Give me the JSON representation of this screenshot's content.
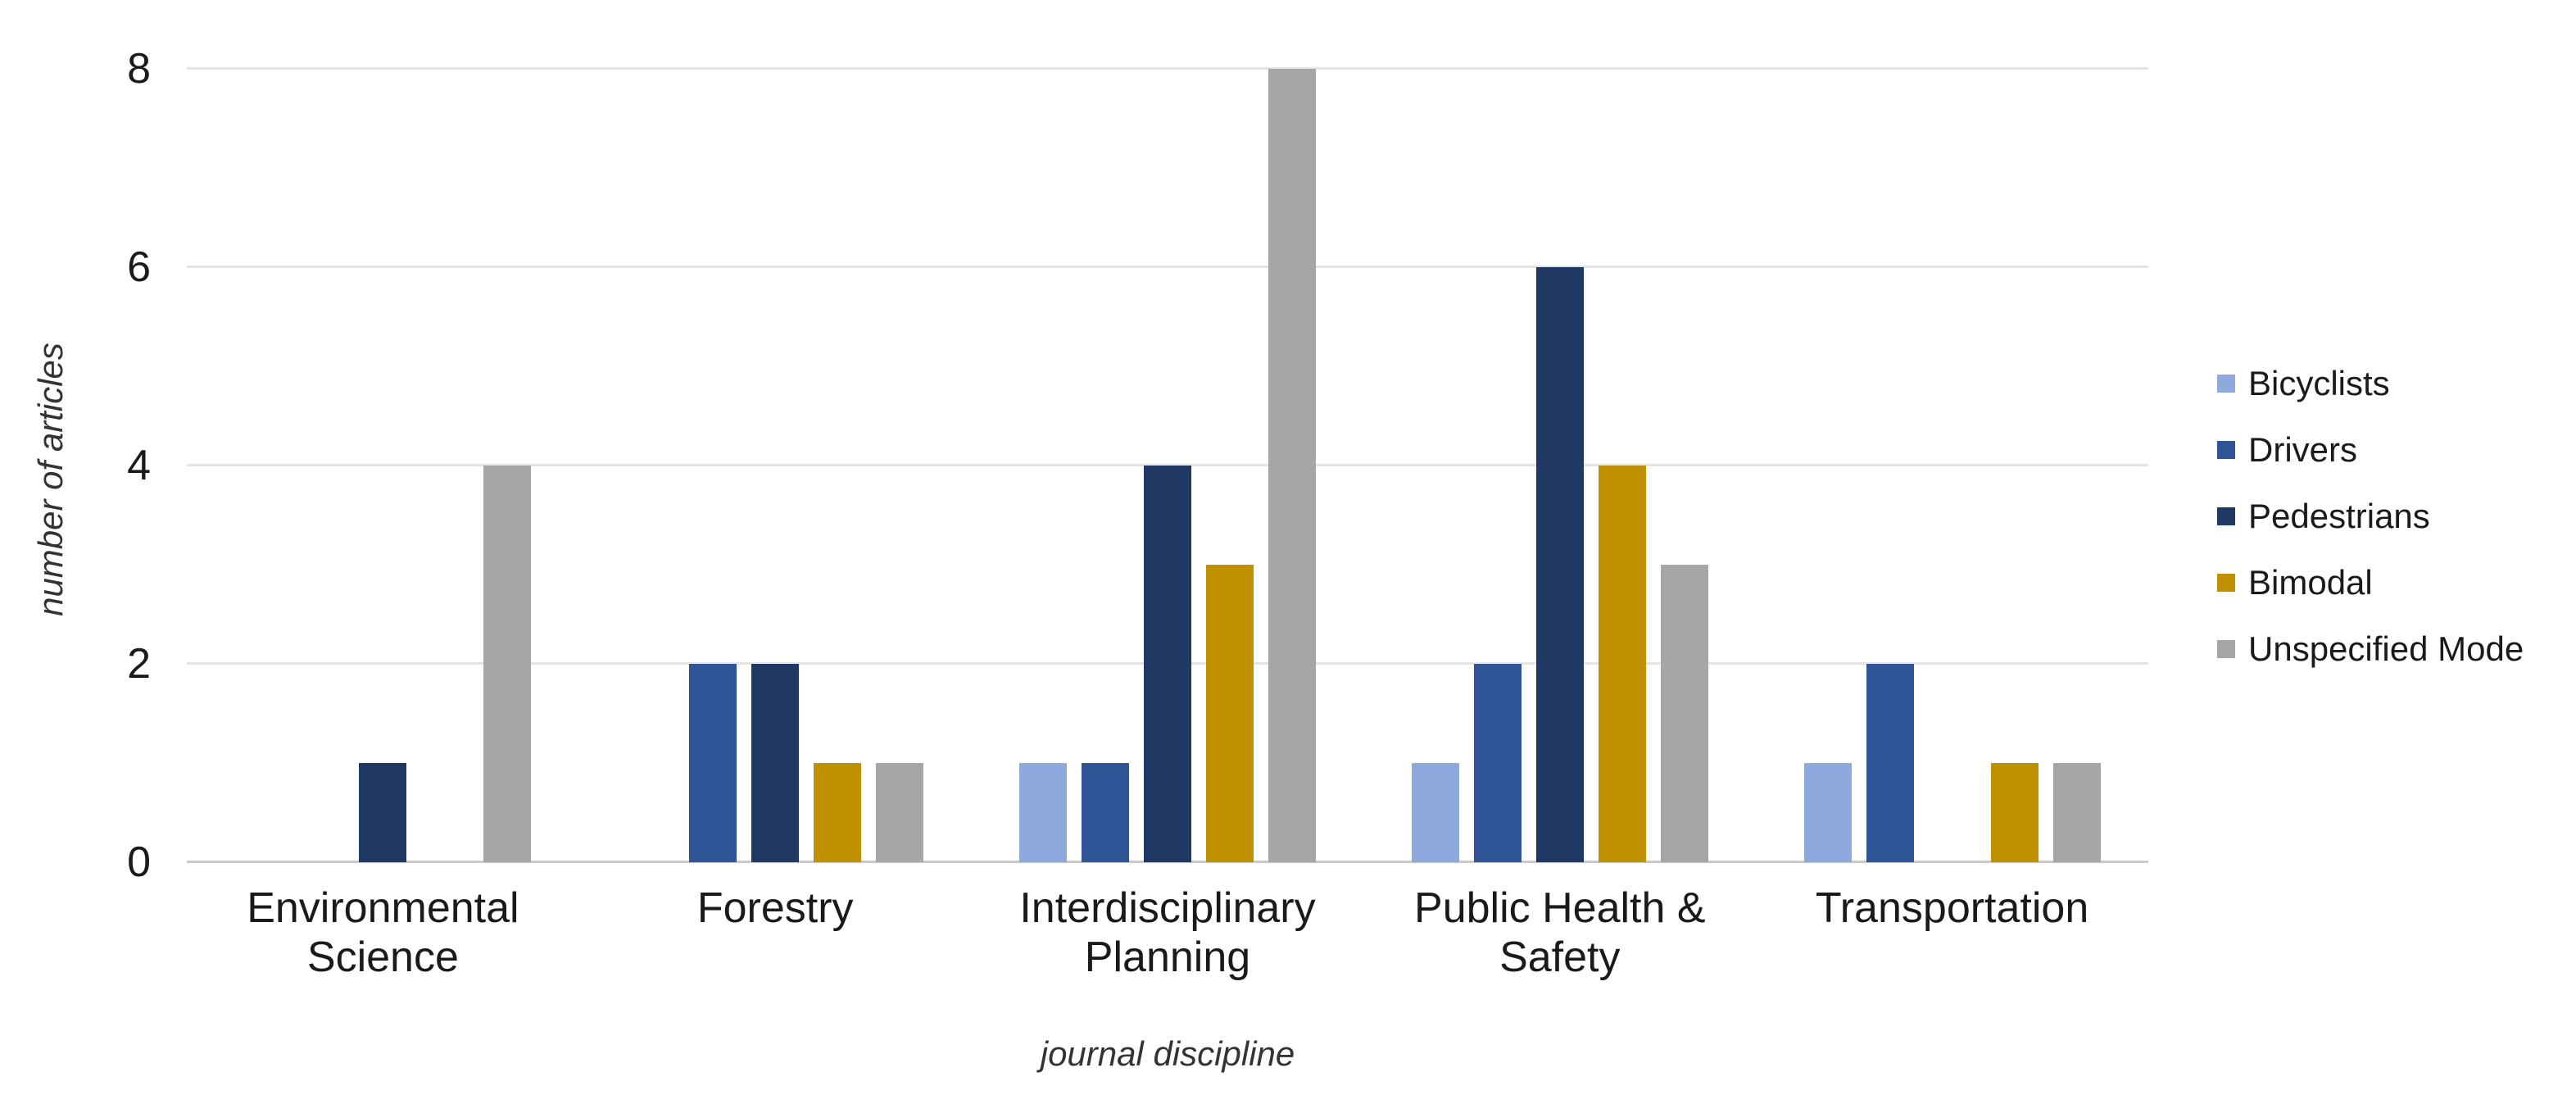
{
  "chart_data": {
    "type": "bar",
    "title": "",
    "xlabel": "journal discipline",
    "ylabel": "number of articles",
    "categories": [
      "Environmental Science",
      "Forestry",
      "Interdisciplinary Planning",
      "Public Health & Safety",
      "Transportation"
    ],
    "series": [
      {
        "name": "Bicyclists",
        "color": "#8EA9DB",
        "values": [
          0,
          0,
          1,
          1,
          1
        ]
      },
      {
        "name": "Drivers",
        "color": "#2F5597",
        "values": [
          0,
          2,
          1,
          2,
          2
        ]
      },
      {
        "name": "Pedestrians",
        "color": "#1F3864",
        "values": [
          1,
          2,
          4,
          6,
          0
        ]
      },
      {
        "name": "Bimodal",
        "color": "#BF9000",
        "values": [
          0,
          1,
          3,
          4,
          1
        ]
      },
      {
        "name": "Unspecified Mode",
        "color": "#A6A6A6",
        "values": [
          4,
          1,
          8,
          3,
          1
        ]
      }
    ],
    "yticks": [
      0,
      2,
      4,
      6,
      8
    ],
    "ylim": [
      0,
      8
    ],
    "grid": "horizontal",
    "legend_position": "right",
    "gridline_color": "#E4E4E4",
    "axis_line_color": "#C9C9C9",
    "background_color": "#FFFFFF",
    "text_color": "#1A1A1A"
  }
}
